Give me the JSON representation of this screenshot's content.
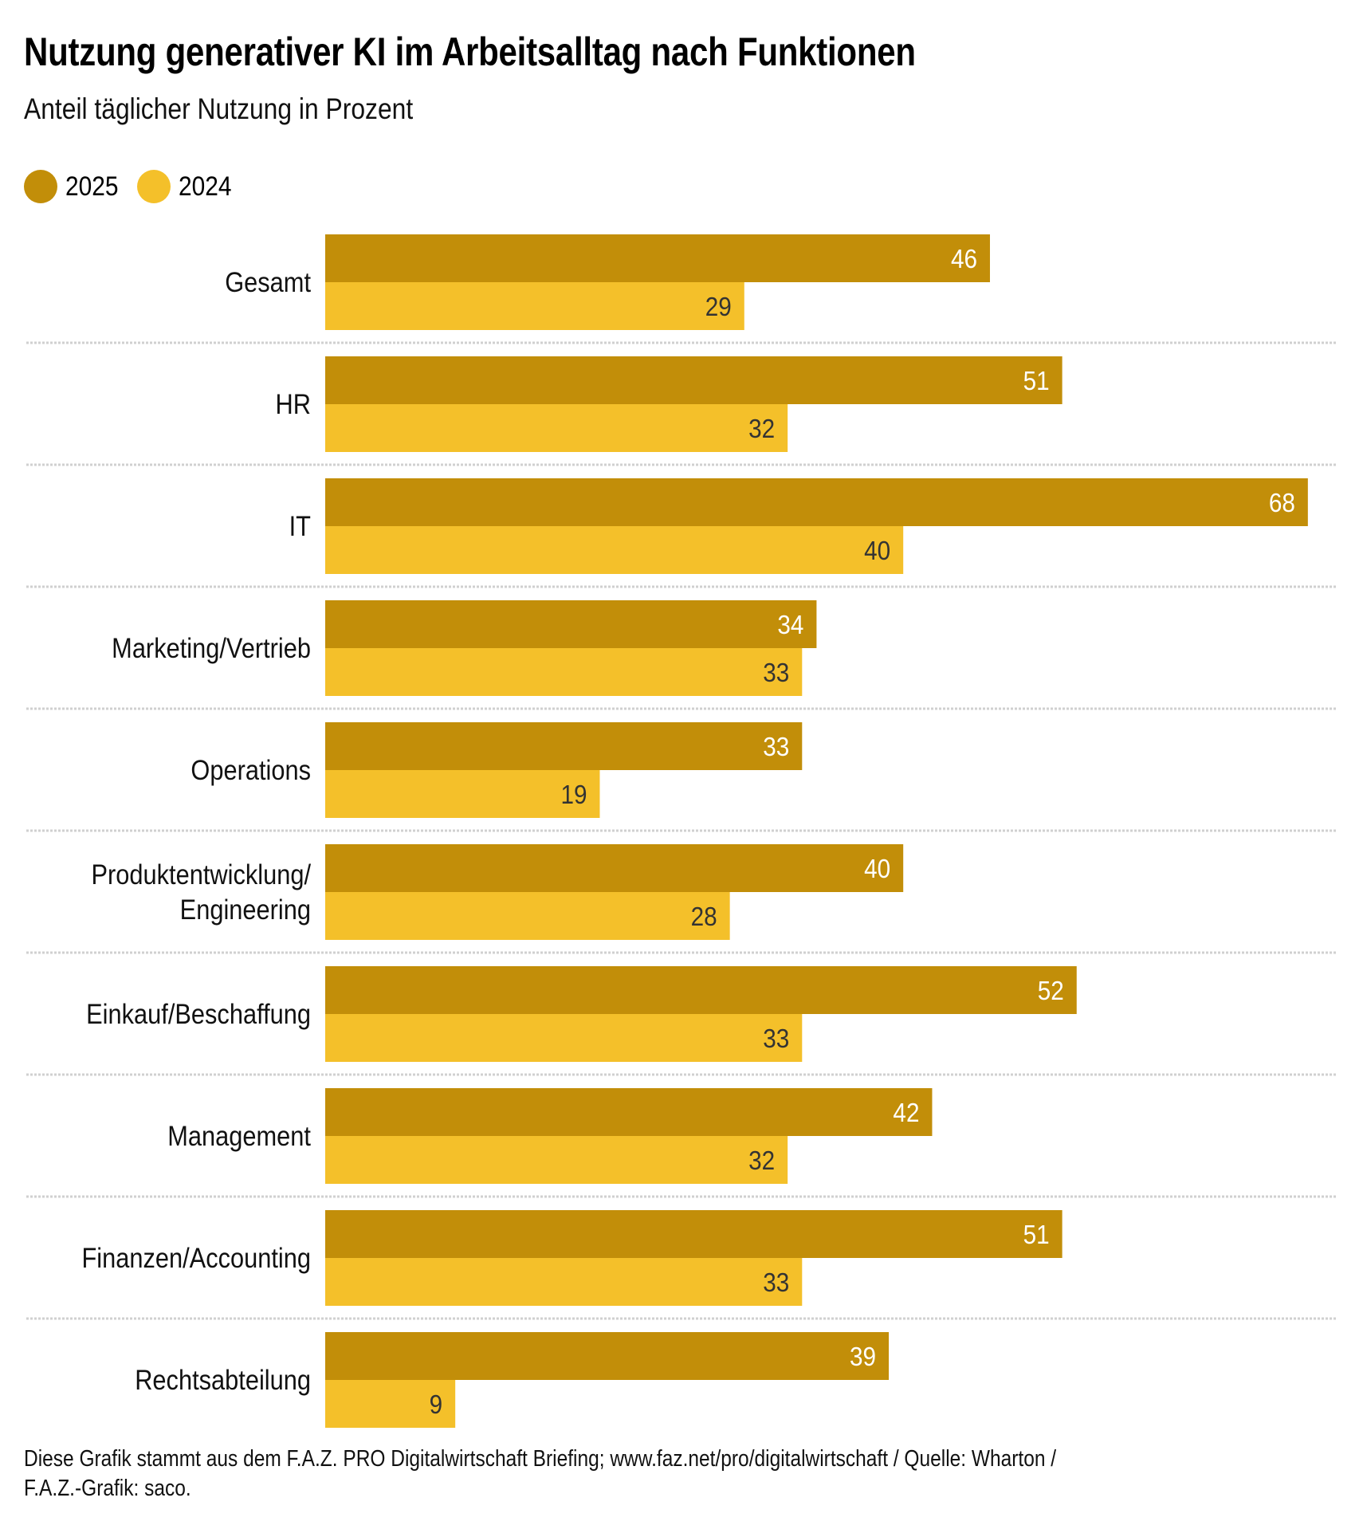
{
  "header": {
    "title": "Nutzung generativer KI im Arbeitsalltag nach Funktionen",
    "subtitle": "Anteil täglicher Nutzung in Prozent"
  },
  "legend": [
    {
      "label": "2025",
      "color": "#C28E09"
    },
    {
      "label": "2024",
      "color": "#F4C02A"
    }
  ],
  "footer": {
    "line1": "Diese Grafik stammt aus dem F.A.Z. PRO Digitalwirtschaft Briefing; www.faz.net/pro/digitalwirtschaft  / Quelle: Wharton /",
    "line2": "F.A.Z.-Grafik: saco."
  },
  "chart_data": {
    "type": "bar",
    "orientation": "horizontal",
    "title": "Nutzung generativer KI im Arbeitsalltag nach Funktionen",
    "subtitle": "Anteil täglicher Nutzung in Prozent",
    "xlabel": "",
    "ylabel": "",
    "xlim": [
      0,
      70
    ],
    "grid": false,
    "legend_position": "top-left",
    "categories": [
      "Gesamt",
      "HR",
      "IT",
      "Marketing/Vertrieb",
      "Operations",
      "Produktentwicklung/ Engineering",
      "Einkauf/Beschaffung",
      "Management",
      "Finanzen/Accounting",
      "Rechtsabteilung"
    ],
    "series": [
      {
        "name": "2025",
        "color": "#C28E09",
        "label_color": "#FFFFFF",
        "values": [
          46,
          51,
          68,
          34,
          33,
          40,
          52,
          42,
          51,
          39
        ]
      },
      {
        "name": "2024",
        "color": "#F4C02A",
        "label_color": "#333333",
        "values": [
          29,
          32,
          40,
          33,
          19,
          28,
          33,
          32,
          33,
          9
        ]
      }
    ],
    "divider_color": "#D0D0D0"
  }
}
